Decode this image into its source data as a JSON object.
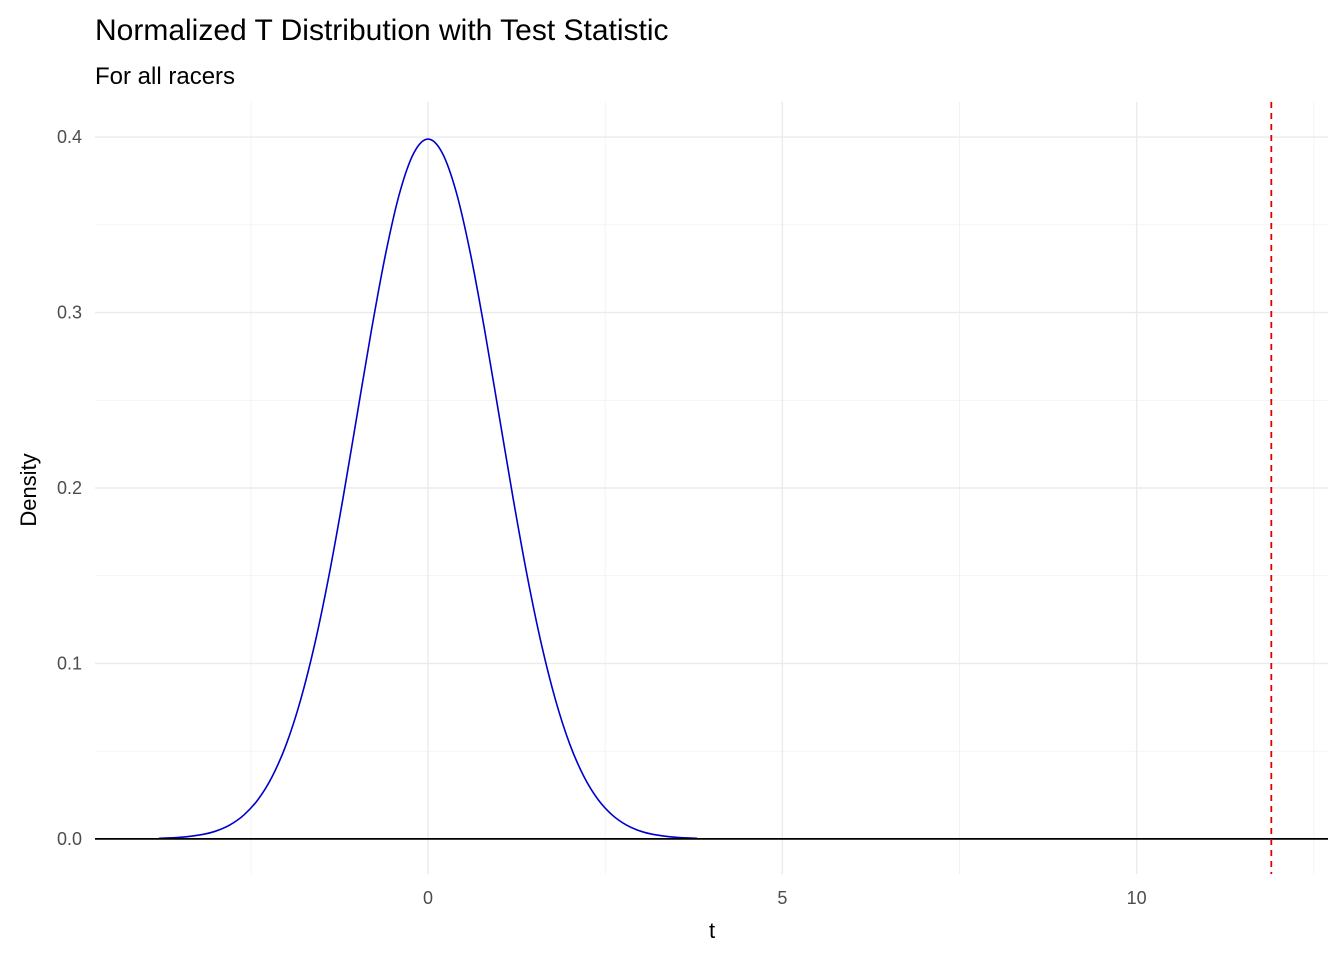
{
  "chart_data": {
    "type": "line",
    "title": "Normalized T Distribution with Test Statistic",
    "subtitle": "For all racers",
    "xlabel": "t",
    "ylabel": "Density",
    "xlim": [
      -4.7,
      12.7
    ],
    "ylim": [
      -0.02,
      0.42
    ],
    "x_ticks": [
      0,
      5,
      10
    ],
    "x_tick_labels": [
      "0",
      "5",
      "10"
    ],
    "y_ticks": [
      0.0,
      0.1,
      0.2,
      0.3,
      0.4
    ],
    "y_tick_labels": [
      "0.0",
      "0.1",
      "0.2",
      "0.3",
      "0.4"
    ],
    "grid": true,
    "series": [
      {
        "color": "#0000cc",
        "x": [
          -3.8,
          -3.5,
          -3.2,
          -3.0,
          -2.8,
          -2.6,
          -2.4,
          -2.2,
          -2.0,
          -1.8,
          -1.6,
          -1.4,
          -1.2,
          -1.0,
          -0.8,
          -0.6,
          -0.4,
          -0.2,
          0.0,
          0.2,
          0.4,
          0.6,
          0.8,
          1.0,
          1.2,
          1.4,
          1.6,
          1.8,
          2.0,
          2.2,
          2.4,
          2.6,
          2.8,
          3.0,
          3.2,
          3.5,
          3.8
        ],
        "y": [
          0.0003,
          0.0009,
          0.0024,
          0.0044,
          0.0079,
          0.0136,
          0.0224,
          0.0355,
          0.054,
          0.079,
          0.1109,
          0.1497,
          0.1942,
          0.242,
          0.2897,
          0.3332,
          0.3683,
          0.391,
          0.3989,
          0.391,
          0.3683,
          0.3332,
          0.2897,
          0.242,
          0.1942,
          0.1497,
          0.1109,
          0.079,
          0.054,
          0.0355,
          0.0224,
          0.0136,
          0.0079,
          0.0044,
          0.0024,
          0.0009,
          0.0003
        ]
      }
    ],
    "reference_lines": [
      {
        "orientation": "horizontal",
        "value": 0,
        "color": "#000000",
        "style": "solid"
      },
      {
        "orientation": "vertical",
        "value": 11.9,
        "color": "#e00000",
        "style": "dashed"
      }
    ]
  }
}
